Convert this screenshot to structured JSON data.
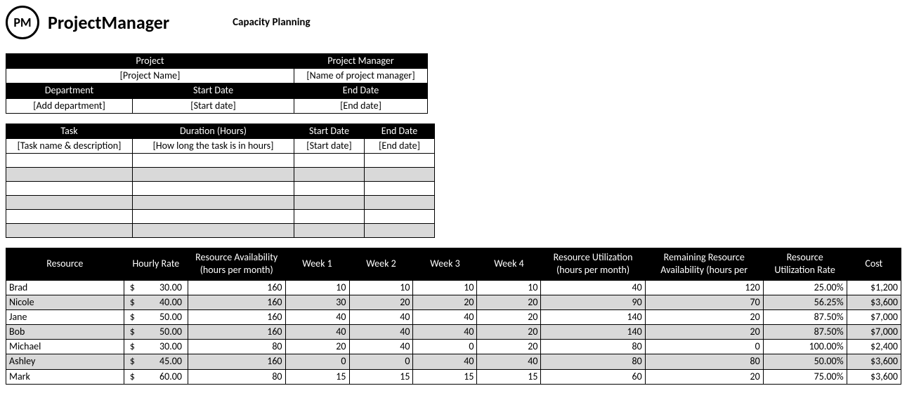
{
  "brand": {
    "logo_short": "PM",
    "logo_text": "ProjectManager"
  },
  "title": "Capacity Planning",
  "info": {
    "headers": {
      "project": "Project",
      "project_manager": "Project Manager",
      "department": "Department",
      "start_date": "Start Date",
      "end_date": "End Date"
    },
    "values": {
      "project": "[Project Name]",
      "project_manager": "[Name of project manager]",
      "department": "[Add department]",
      "start_date": "[Start date]",
      "end_date": "[End date]"
    }
  },
  "tasks": {
    "headers": {
      "task": "Task",
      "duration": "Duration (Hours)",
      "start": "Start Date",
      "end": "End Date"
    },
    "placeholder_row": {
      "task": "[Task name & description]",
      "duration": "[How long the task is in hours]",
      "start": "[Start date]",
      "end": "[End date]"
    },
    "empty_rows": 6,
    "shaded_row_indices": [
      1,
      3,
      5
    ]
  },
  "resources": {
    "headers": [
      "Resource",
      "Hourly Rate",
      "Resource Availability (hours per month)",
      "Week 1",
      "Week 2",
      "Week 3",
      "Week 4",
      "Resource Utilization (hours per month)",
      "Remaining Resource Availability (hours per",
      "Resource Utilization Rate",
      "Cost"
    ],
    "rows": [
      {
        "name": "Brad",
        "rate": "30.00",
        "avail": 160,
        "w1": 10,
        "w2": 10,
        "w3": 10,
        "w4": 10,
        "util": 40,
        "remain": 120,
        "rate_pct": "25.00%",
        "cost": "$1,200",
        "shaded": false
      },
      {
        "name": "Nicole",
        "rate": "40.00",
        "avail": 160,
        "w1": 30,
        "w2": 20,
        "w3": 20,
        "w4": 20,
        "util": 90,
        "remain": 70,
        "rate_pct": "56.25%",
        "cost": "$3,600",
        "shaded": true
      },
      {
        "name": "Jane",
        "rate": "50.00",
        "avail": 160,
        "w1": 40,
        "w2": 40,
        "w3": 40,
        "w4": 20,
        "util": 140,
        "remain": 20,
        "rate_pct": "87.50%",
        "cost": "$7,000",
        "shaded": false
      },
      {
        "name": "Bob",
        "rate": "50.00",
        "avail": 160,
        "w1": 40,
        "w2": 40,
        "w3": 40,
        "w4": 20,
        "util": 140,
        "remain": 20,
        "rate_pct": "87.50%",
        "cost": "$7,000",
        "shaded": true
      },
      {
        "name": "Michael",
        "rate": "30.00",
        "avail": 80,
        "w1": 20,
        "w2": 40,
        "w3": 0,
        "w4": 20,
        "util": 80,
        "remain": 0,
        "rate_pct": "100.00%",
        "cost": "$2,400",
        "shaded": false
      },
      {
        "name": "Ashley",
        "rate": "45.00",
        "avail": 160,
        "w1": 0,
        "w2": 0,
        "w3": 40,
        "w4": 40,
        "util": 80,
        "remain": 80,
        "rate_pct": "50.00%",
        "cost": "$3,600",
        "shaded": true
      },
      {
        "name": "Mark",
        "rate": "60.00",
        "avail": 80,
        "w1": 15,
        "w2": 15,
        "w3": 15,
        "w4": 15,
        "util": 60,
        "remain": 20,
        "rate_pct": "75.00%",
        "cost": "$3,600",
        "shaded": false
      }
    ]
  }
}
